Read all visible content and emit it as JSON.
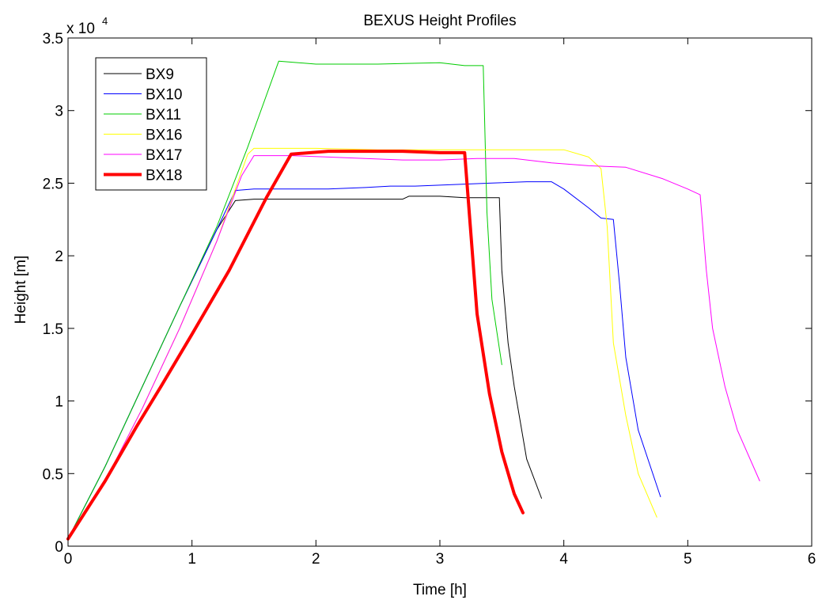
{
  "chart_data": {
    "type": "line",
    "title": "BEXUS Height Profiles",
    "xlabel": "Time [h]",
    "ylabel": "Height [m]",
    "y_exponent_label": "x 10",
    "y_exponent_power": "4",
    "xlim": [
      0,
      6
    ],
    "ylim": [
      0,
      35000
    ],
    "xticks": [
      0,
      1,
      2,
      3,
      4,
      5,
      6
    ],
    "xtick_labels": [
      "0",
      "1",
      "2",
      "3",
      "4",
      "5",
      "6"
    ],
    "yticks": [
      0,
      5000,
      10000,
      15000,
      20000,
      25000,
      30000,
      35000
    ],
    "ytick_labels": [
      "0",
      "0.5",
      "1",
      "1.5",
      "2",
      "2.5",
      "3",
      "3.5"
    ],
    "grid": false,
    "legend_position": "top-left",
    "series": [
      {
        "name": "BX9",
        "color": "#000000",
        "width": 1,
        "x": [
          0,
          0.3,
          0.6,
          0.9,
          1.2,
          1.35,
          1.5,
          1.8,
          2.1,
          2.4,
          2.7,
          2.75,
          3.0,
          3.2,
          3.48,
          3.5,
          3.55,
          3.6,
          3.7,
          3.82
        ],
        "y": [
          500,
          5500,
          11000,
          16500,
          21800,
          23800,
          23900,
          23900,
          23900,
          23900,
          23900,
          24100,
          24100,
          24000,
          24000,
          19000,
          14000,
          11000,
          6000,
          3300
        ]
      },
      {
        "name": "BX10",
        "color": "#0000ff",
        "width": 1,
        "x": [
          0,
          0.3,
          0.6,
          0.9,
          1.2,
          1.35,
          1.5,
          1.8,
          2.1,
          2.4,
          2.6,
          2.8,
          3.1,
          3.4,
          3.7,
          3.9,
          4.0,
          4.2,
          4.3,
          4.4,
          4.45,
          4.5,
          4.6,
          4.78
        ],
        "y": [
          500,
          5500,
          11000,
          16500,
          21800,
          24500,
          24600,
          24600,
          24600,
          24700,
          24800,
          24800,
          24900,
          25000,
          25100,
          25100,
          24600,
          23300,
          22600,
          22500,
          18000,
          13000,
          8000,
          3400
        ]
      },
      {
        "name": "BX11",
        "color": "#00cc00",
        "width": 1,
        "x": [
          0,
          0.3,
          0.6,
          0.9,
          1.2,
          1.45,
          1.7,
          2.0,
          2.5,
          3.0,
          3.2,
          3.35,
          3.38,
          3.42,
          3.5
        ],
        "y": [
          500,
          5500,
          11000,
          16500,
          22000,
          27500,
          33400,
          33200,
          33200,
          33300,
          33100,
          33100,
          23000,
          17000,
          12500
        ]
      },
      {
        "name": "BX16",
        "color": "#ffff00",
        "width": 1,
        "x": [
          0,
          0.3,
          0.6,
          0.9,
          1.2,
          1.45,
          1.5,
          2.0,
          2.5,
          3.0,
          3.5,
          4.0,
          4.2,
          4.3,
          4.35,
          4.4,
          4.5,
          4.6,
          4.75
        ],
        "y": [
          500,
          4500,
          9500,
          15000,
          21000,
          27000,
          27400,
          27400,
          27300,
          27300,
          27300,
          27300,
          26800,
          26000,
          22000,
          14000,
          9000,
          5000,
          2000
        ]
      },
      {
        "name": "BX17",
        "color": "#ff00ff",
        "width": 1,
        "x": [
          0,
          0.3,
          0.6,
          0.9,
          1.2,
          1.4,
          1.5,
          1.8,
          2.1,
          2.4,
          2.7,
          3.0,
          3.3,
          3.6,
          3.9,
          4.2,
          4.5,
          4.8,
          5.0,
          5.1,
          5.15,
          5.2,
          5.3,
          5.4,
          5.58
        ],
        "y": [
          500,
          4500,
          9500,
          15000,
          21000,
          25500,
          26900,
          26900,
          26800,
          26700,
          26600,
          26600,
          26700,
          26700,
          26400,
          26200,
          26100,
          25300,
          24600,
          24200,
          19000,
          15000,
          11000,
          8000,
          4500
        ]
      },
      {
        "name": "BX18",
        "color": "#ff0000",
        "width": 4,
        "x": [
          0,
          0.3,
          0.55,
          0.75,
          1.0,
          1.3,
          1.6,
          1.8,
          2.1,
          2.4,
          2.7,
          3.0,
          3.1,
          3.2,
          3.3,
          3.4,
          3.5,
          3.6,
          3.67
        ],
        "y": [
          500,
          4500,
          8200,
          11000,
          14600,
          19000,
          24000,
          27000,
          27200,
          27200,
          27200,
          27100,
          27100,
          27100,
          16000,
          10500,
          6500,
          3600,
          2300
        ]
      }
    ]
  }
}
